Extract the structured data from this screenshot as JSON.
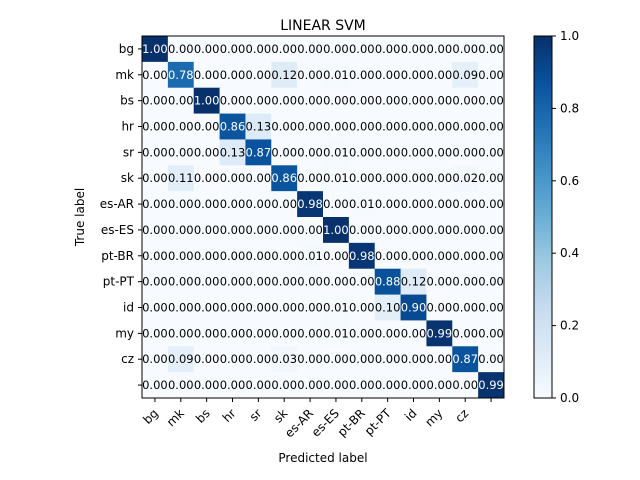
{
  "chart_data": {
    "type": "heatmap",
    "title": "LINEAR SVM",
    "xlabel": "Predicted label",
    "ylabel": "True label",
    "row_labels": [
      "bg",
      "mk",
      "bs",
      "hr",
      "sr",
      "sk",
      "es-AR",
      "es-ES",
      "pt-BR",
      "pt-PT",
      "id",
      "my",
      "cz",
      ""
    ],
    "col_labels": [
      "bg",
      "mk",
      "bs",
      "hr",
      "sr",
      "sk",
      "es-AR",
      "es-ES",
      "pt-BR",
      "pt-PT",
      "id",
      "my",
      "cz",
      ""
    ],
    "values": [
      [
        1.0,
        0.0,
        0.0,
        0.0,
        0.0,
        0.0,
        0.0,
        0.0,
        0.0,
        0.0,
        0.0,
        0.0,
        0.0,
        0.0
      ],
      [
        0.0,
        0.78,
        0.0,
        0.0,
        0.0,
        0.12,
        0.0,
        0.01,
        0.0,
        0.0,
        0.0,
        0.0,
        0.09,
        0.0
      ],
      [
        0.0,
        0.0,
        1.0,
        0.0,
        0.0,
        0.0,
        0.0,
        0.0,
        0.0,
        0.0,
        0.0,
        0.0,
        0.0,
        0.0
      ],
      [
        0.0,
        0.0,
        0.0,
        0.86,
        0.13,
        0.0,
        0.0,
        0.0,
        0.0,
        0.0,
        0.0,
        0.0,
        0.0,
        0.0
      ],
      [
        0.0,
        0.0,
        0.0,
        0.13,
        0.87,
        0.0,
        0.0,
        0.01,
        0.0,
        0.0,
        0.0,
        0.0,
        0.0,
        0.0
      ],
      [
        0.0,
        0.11,
        0.0,
        0.0,
        0.0,
        0.86,
        0.0,
        0.01,
        0.0,
        0.0,
        0.0,
        0.0,
        0.02,
        0.0
      ],
      [
        0.0,
        0.0,
        0.0,
        0.0,
        0.0,
        0.0,
        0.98,
        0.0,
        0.01,
        0.0,
        0.0,
        0.0,
        0.0,
        0.0
      ],
      [
        0.0,
        0.0,
        0.0,
        0.0,
        0.0,
        0.0,
        0.0,
        1.0,
        0.0,
        0.0,
        0.0,
        0.0,
        0.0,
        0.0
      ],
      [
        0.0,
        0.0,
        0.0,
        0.0,
        0.0,
        0.0,
        0.01,
        0.0,
        0.98,
        0.0,
        0.0,
        0.0,
        0.0,
        0.0
      ],
      [
        0.0,
        0.0,
        0.0,
        0.0,
        0.0,
        0.0,
        0.0,
        0.0,
        0.0,
        0.88,
        0.12,
        0.0,
        0.0,
        0.0
      ],
      [
        0.0,
        0.0,
        0.0,
        0.0,
        0.0,
        0.0,
        0.0,
        0.01,
        0.0,
        0.1,
        0.9,
        0.0,
        0.0,
        0.0
      ],
      [
        0.0,
        0.0,
        0.0,
        0.0,
        0.0,
        0.0,
        0.0,
        0.01,
        0.0,
        0.0,
        0.0,
        0.99,
        0.0,
        0.0
      ],
      [
        0.0,
        0.09,
        0.0,
        0.0,
        0.0,
        0.03,
        0.0,
        0.0,
        0.0,
        0.0,
        0.0,
        0.0,
        0.87,
        0.0
      ],
      [
        0.0,
        0.0,
        0.0,
        0.0,
        0.0,
        0.0,
        0.0,
        0.0,
        0.0,
        0.0,
        0.0,
        0.0,
        0.0,
        0.99
      ]
    ],
    "value_format": "0.00",
    "colormap": "Blues",
    "colormap_colors": [
      "#f7fbff",
      "#deebf7",
      "#c6dbef",
      "#9ecae1",
      "#6baed6",
      "#4292c6",
      "#2171b5",
      "#08519c",
      "#08306b"
    ],
    "text_color_light": "#ffffff",
    "text_color_dark": "#000000",
    "colorbar": {
      "range": [
        0.0,
        1.0
      ],
      "ticks": [
        "0.0",
        "0.2",
        "0.4",
        "0.6",
        "0.8",
        "1.0"
      ]
    }
  }
}
